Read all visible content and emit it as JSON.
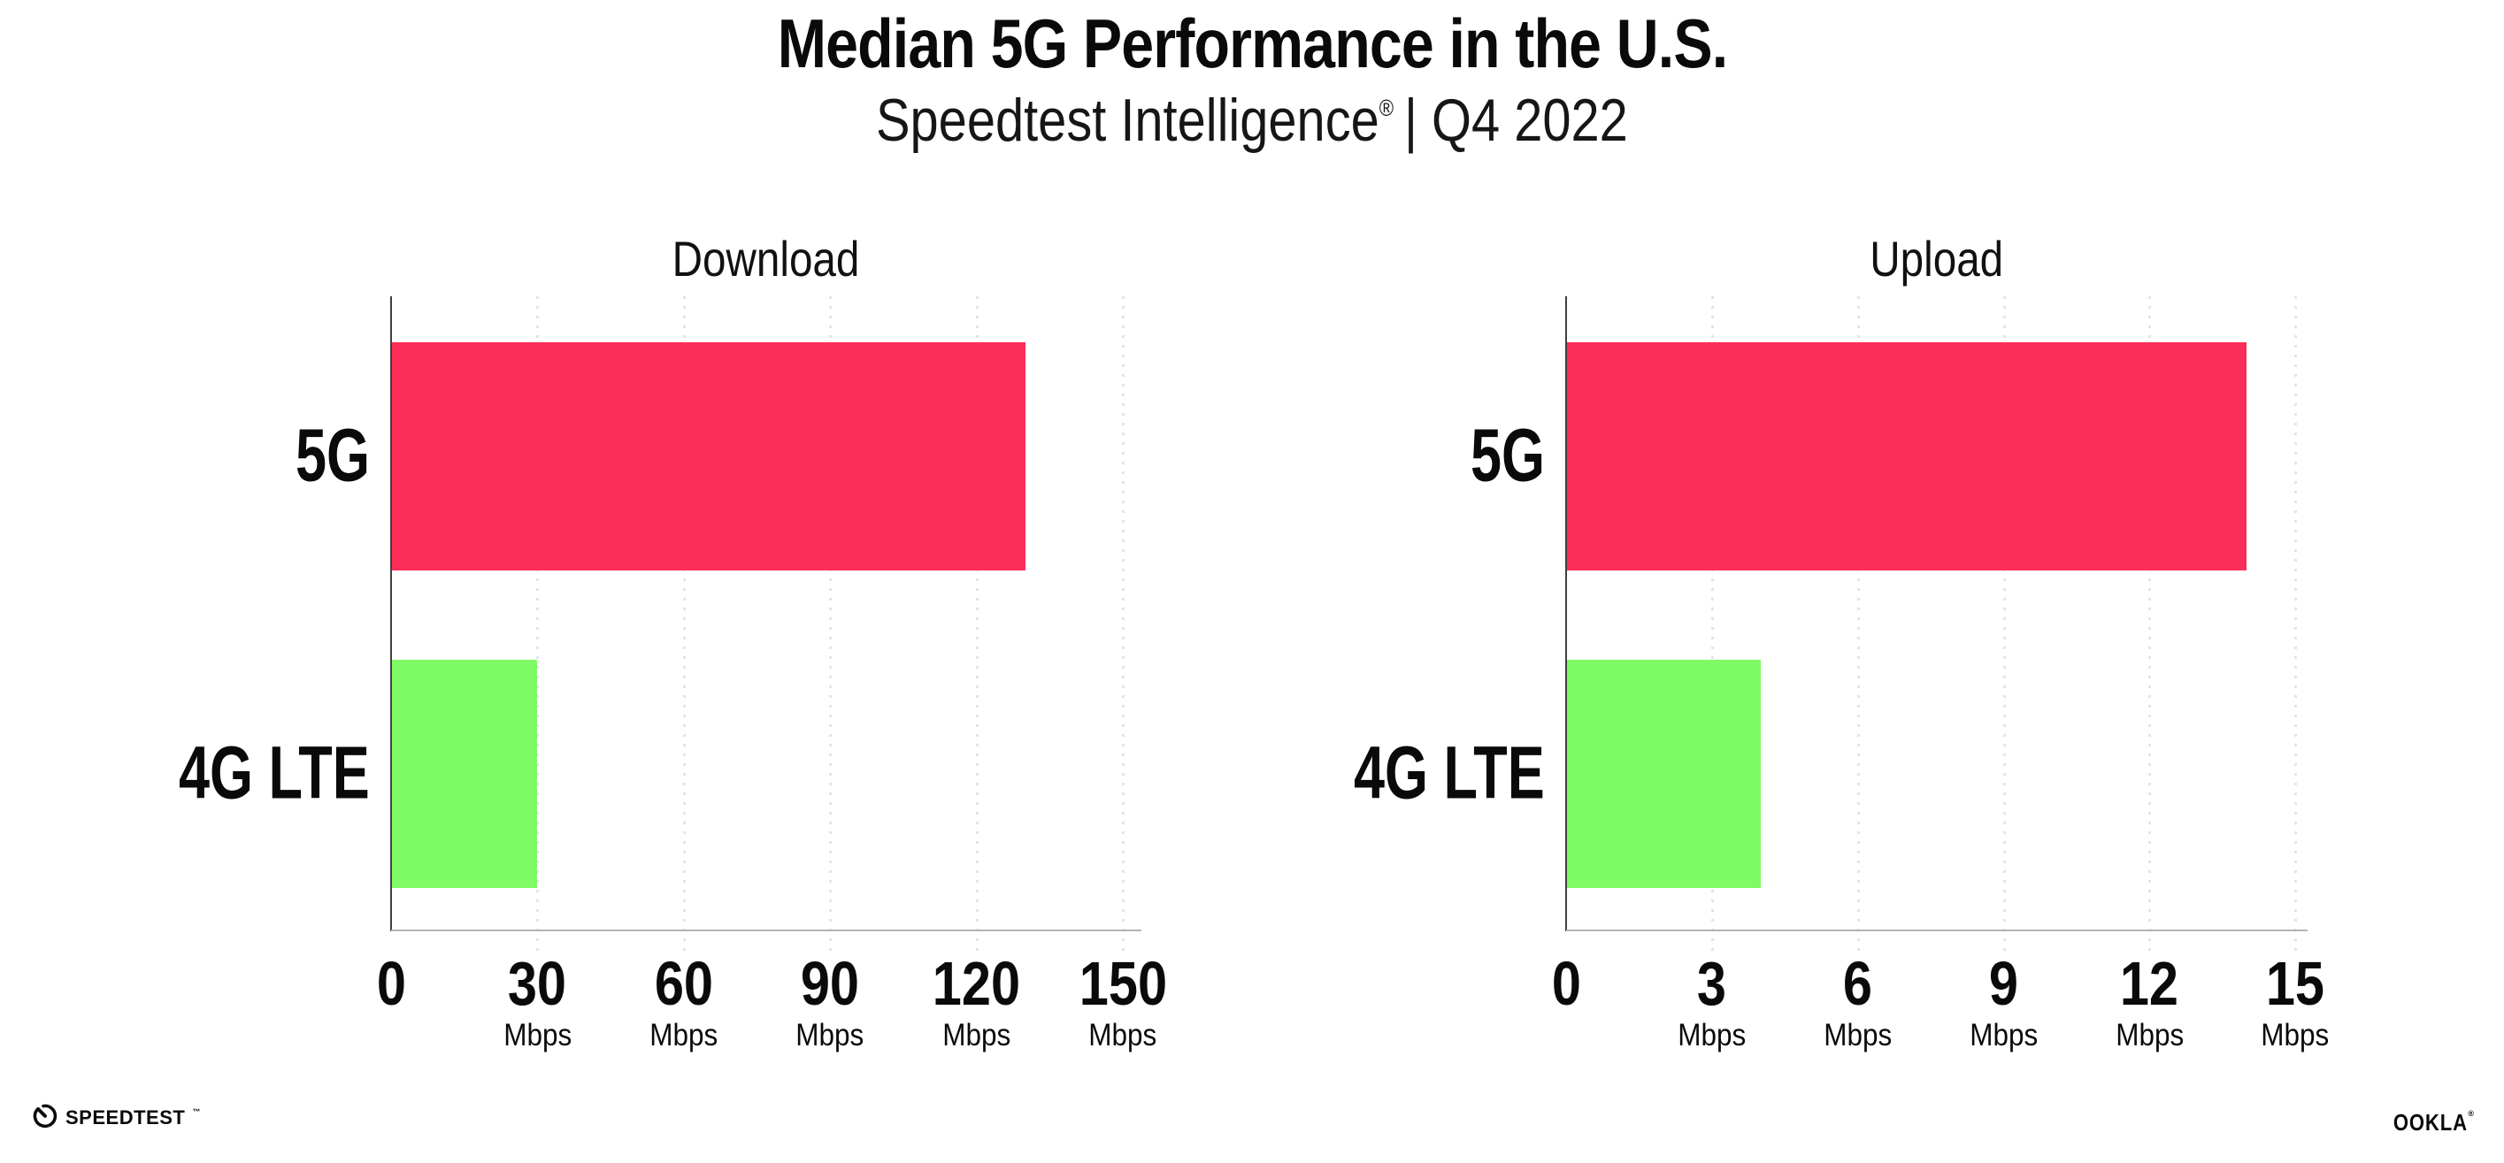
{
  "header": {
    "title": "Median 5G Performance in the U.S.",
    "subtitle": {
      "brand_part": "Speedtest Intelligence",
      "registered_mark": "®",
      "period_part": "| Q4 2022"
    }
  },
  "chart_data": [
    {
      "type": "bar",
      "orientation": "horizontal",
      "title": "Download",
      "categories": [
        "5G",
        "4G LTE"
      ],
      "values": [
        130,
        30
      ],
      "unit": "Mbps",
      "xticks": [
        0,
        30,
        60,
        90,
        120,
        150
      ],
      "xlim": [
        0,
        153.8
      ],
      "bar_colors": [
        "#FC2D56",
        "#7FFB65"
      ],
      "grid": "vertical-dotted",
      "legend": "none"
    },
    {
      "type": "bar",
      "orientation": "horizontal",
      "title": "Upload",
      "categories": [
        "5G",
        "4G LTE"
      ],
      "values": [
        14,
        4
      ],
      "unit": "Mbps",
      "xticks": [
        0,
        3,
        6,
        9,
        12,
        15
      ],
      "xlim": [
        0,
        15.25
      ],
      "bar_colors": [
        "#FC2D56",
        "#7FFB65"
      ],
      "grid": "vertical-dotted",
      "legend": "none"
    }
  ],
  "footer": {
    "speedtest_logo_text": "SPEEDTEST",
    "speedtest_trademark": "™",
    "ookla_logo_text": "OOKLA",
    "ookla_registered": "®"
  },
  "colors": {
    "bar_5g": "#FC2D56",
    "bar_4g_lte": "#7FFB65",
    "gridline": "#E1E3EF",
    "y_axis_line": "#3E3E44",
    "x_axis_line": "#B4B4B6",
    "text": "#0A0A0A",
    "background": "#FFFFFF"
  }
}
